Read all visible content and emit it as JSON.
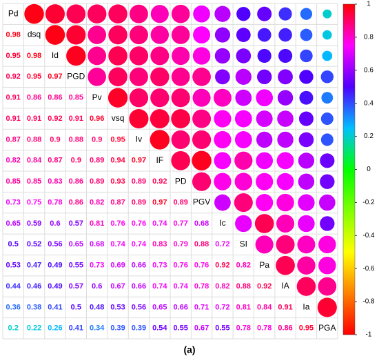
{
  "chart_data": {
    "type": "corrplot",
    "labels": [
      "Pd",
      "dsq",
      "Id",
      "PGD",
      "Pv",
      "vsq",
      "Iv",
      "IF",
      "PD",
      "PGV",
      "Ic",
      "SI",
      "Pa",
      "IA",
      "Ia",
      "PGA"
    ],
    "matrix": [
      [],
      [
        0.98
      ],
      [
        0.95,
        0.98
      ],
      [
        0.92,
        0.95,
        0.97
      ],
      [
        0.91,
        0.86,
        0.86,
        0.85
      ],
      [
        0.91,
        0.91,
        0.92,
        0.91,
        0.96
      ],
      [
        0.87,
        0.88,
        0.9,
        0.88,
        0.9,
        0.95
      ],
      [
        0.82,
        0.84,
        0.87,
        0.9,
        0.89,
        0.94,
        0.97
      ],
      [
        0.85,
        0.85,
        0.83,
        0.86,
        0.89,
        0.93,
        0.89,
        0.92
      ],
      [
        0.73,
        0.75,
        0.78,
        0.86,
        0.82,
        0.87,
        0.89,
        0.97,
        0.89
      ],
      [
        0.65,
        0.59,
        0.6,
        0.57,
        0.81,
        0.76,
        0.76,
        0.74,
        0.77,
        0.68
      ],
      [
        0.5,
        0.52,
        0.56,
        0.65,
        0.68,
        0.74,
        0.74,
        0.83,
        0.79,
        0.88,
        0.72
      ],
      [
        0.53,
        0.47,
        0.49,
        0.55,
        0.73,
        0.69,
        0.66,
        0.73,
        0.76,
        0.76,
        0.92,
        0.82
      ],
      [
        0.44,
        0.46,
        0.49,
        0.57,
        0.6,
        0.67,
        0.66,
        0.74,
        0.74,
        0.78,
        0.82,
        0.88,
        0.92
      ],
      [
        0.36,
        0.38,
        0.41,
        0.5,
        0.48,
        0.53,
        0.56,
        0.65,
        0.66,
        0.71,
        0.72,
        0.81,
        0.84,
        0.91
      ],
      [
        0.2,
        0.22,
        0.26,
        0.41,
        0.34,
        0.39,
        0.39,
        0.54,
        0.55,
        0.67,
        0.55,
        0.78,
        0.78,
        0.86,
        0.95
      ]
    ],
    "colors": [
      "#ff0000",
      "#ff8000",
      "#ffff00",
      "#80ff00",
      "#00ff00",
      "#00c0ff",
      "#5000ff",
      "#ff00ff",
      "#ff0000"
    ],
    "clim": [
      -1,
      1
    ],
    "cticks": [
      1,
      0.8,
      0.6,
      0.4,
      0.2,
      0,
      -0.2,
      -0.4,
      -0.6,
      -0.8,
      -1
    ],
    "caption": "(a)"
  }
}
